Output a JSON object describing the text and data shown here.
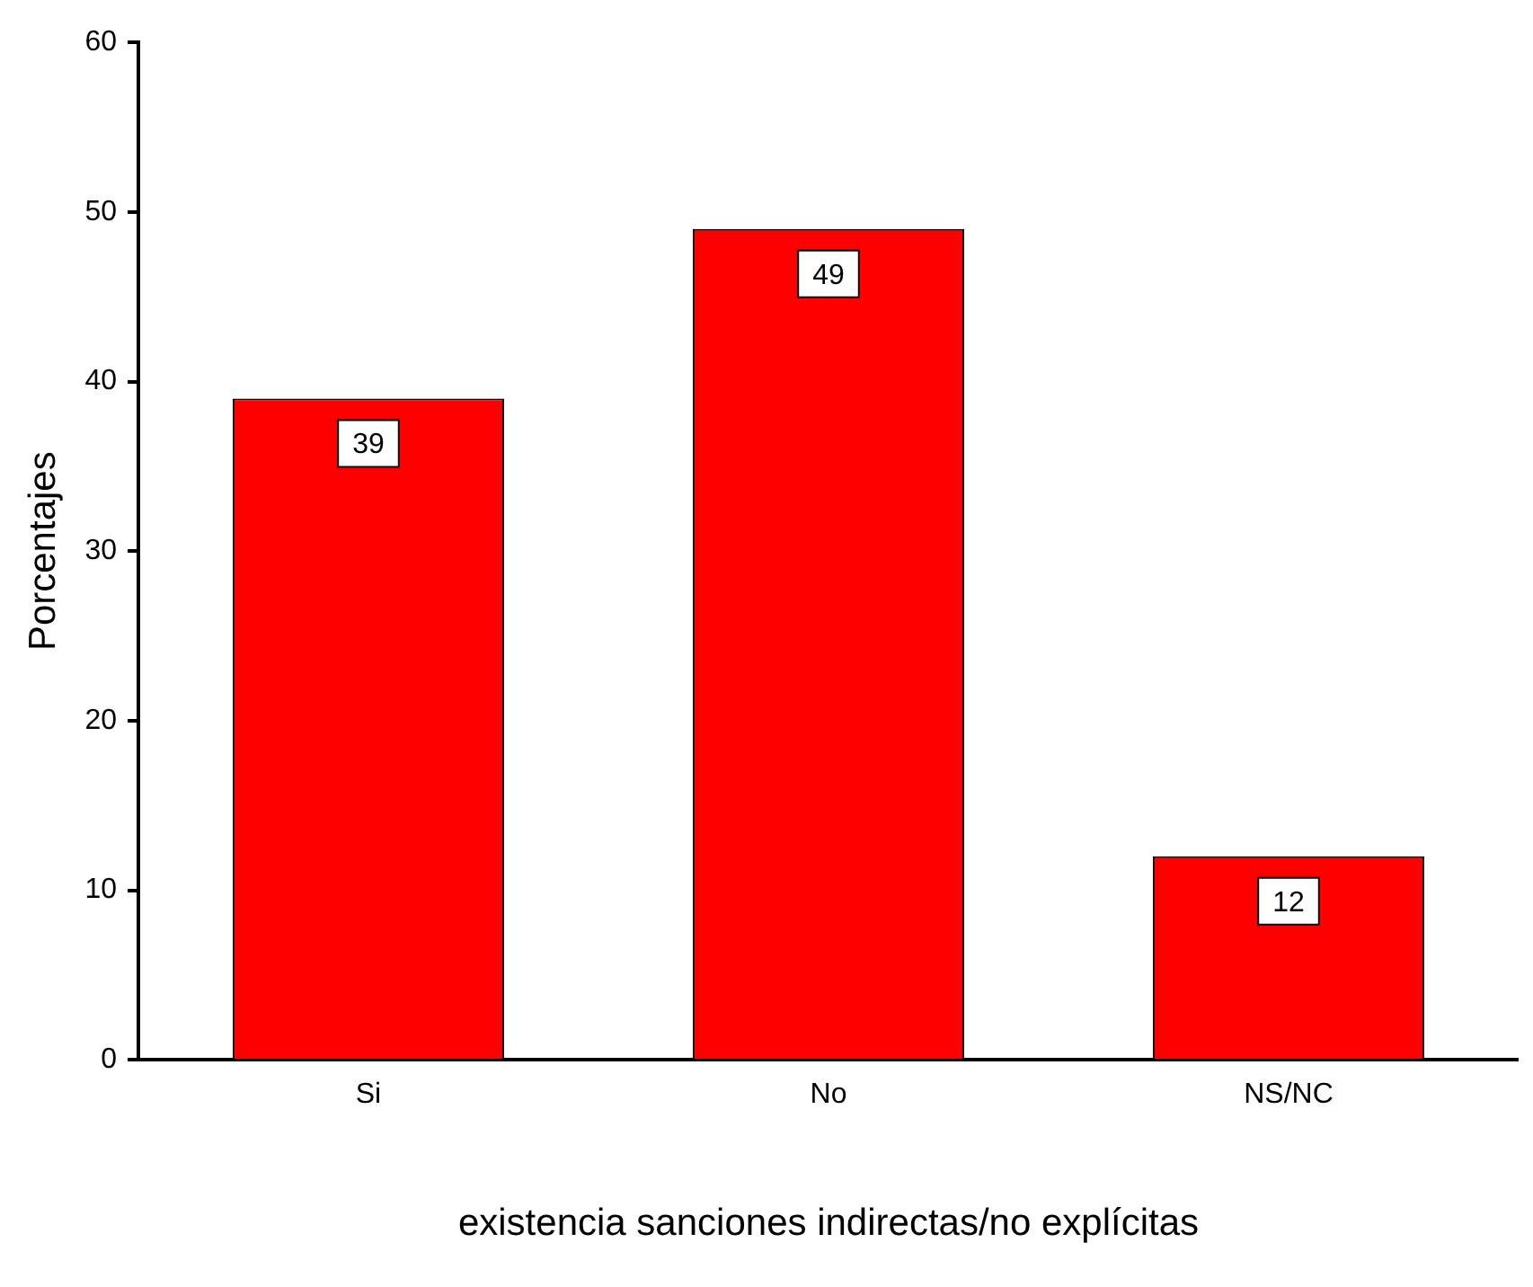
{
  "chart_data": {
    "type": "bar",
    "xlabel": "existencia sanciones indirectas/no explícitas",
    "ylabel": "Porcentajes",
    "categories": [
      "Si",
      "No",
      "NS/NC"
    ],
    "values": [
      39,
      49,
      12
    ],
    "color": "#ff0000",
    "ylim": [
      0,
      60
    ],
    "yticks": [
      0,
      10,
      20,
      30,
      40,
      50,
      60
    ],
    "grid": false,
    "legend": false,
    "data_labels": true
  }
}
